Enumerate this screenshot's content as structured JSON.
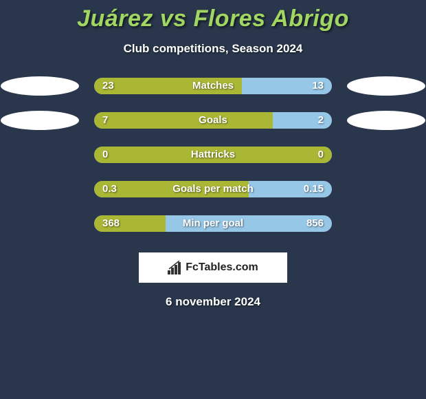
{
  "title": "Juárez vs Flores Abrigo",
  "subtitle": "Club competitions, Season 2024",
  "date": "6 november 2024",
  "logo_text": "FcTables.com",
  "colors": {
    "background": "#29364b",
    "title": "#a0d661",
    "bar_right": "#97c7e6",
    "bar_left_green": "#aab735",
    "ellipse": "#ffffff"
  },
  "bars": [
    {
      "label": "Matches",
      "left_value": "23",
      "right_value": "13",
      "left_pct": 62,
      "left_color": "#aab735",
      "show_ellipses": true
    },
    {
      "label": "Goals",
      "left_value": "7",
      "right_value": "2",
      "left_pct": 75,
      "left_color": "#aab735",
      "show_ellipses": true
    },
    {
      "label": "Hattricks",
      "left_value": "0",
      "right_value": "0",
      "left_pct": 100,
      "left_color": "#aab735",
      "show_ellipses": false
    },
    {
      "label": "Goals per match",
      "left_value": "0.3",
      "right_value": "0.15",
      "left_pct": 65,
      "left_color": "#aab735",
      "show_ellipses": false
    },
    {
      "label": "Min per goal",
      "left_value": "368",
      "right_value": "856",
      "left_pct": 30,
      "left_color": "#aab735",
      "show_ellipses": false
    }
  ]
}
